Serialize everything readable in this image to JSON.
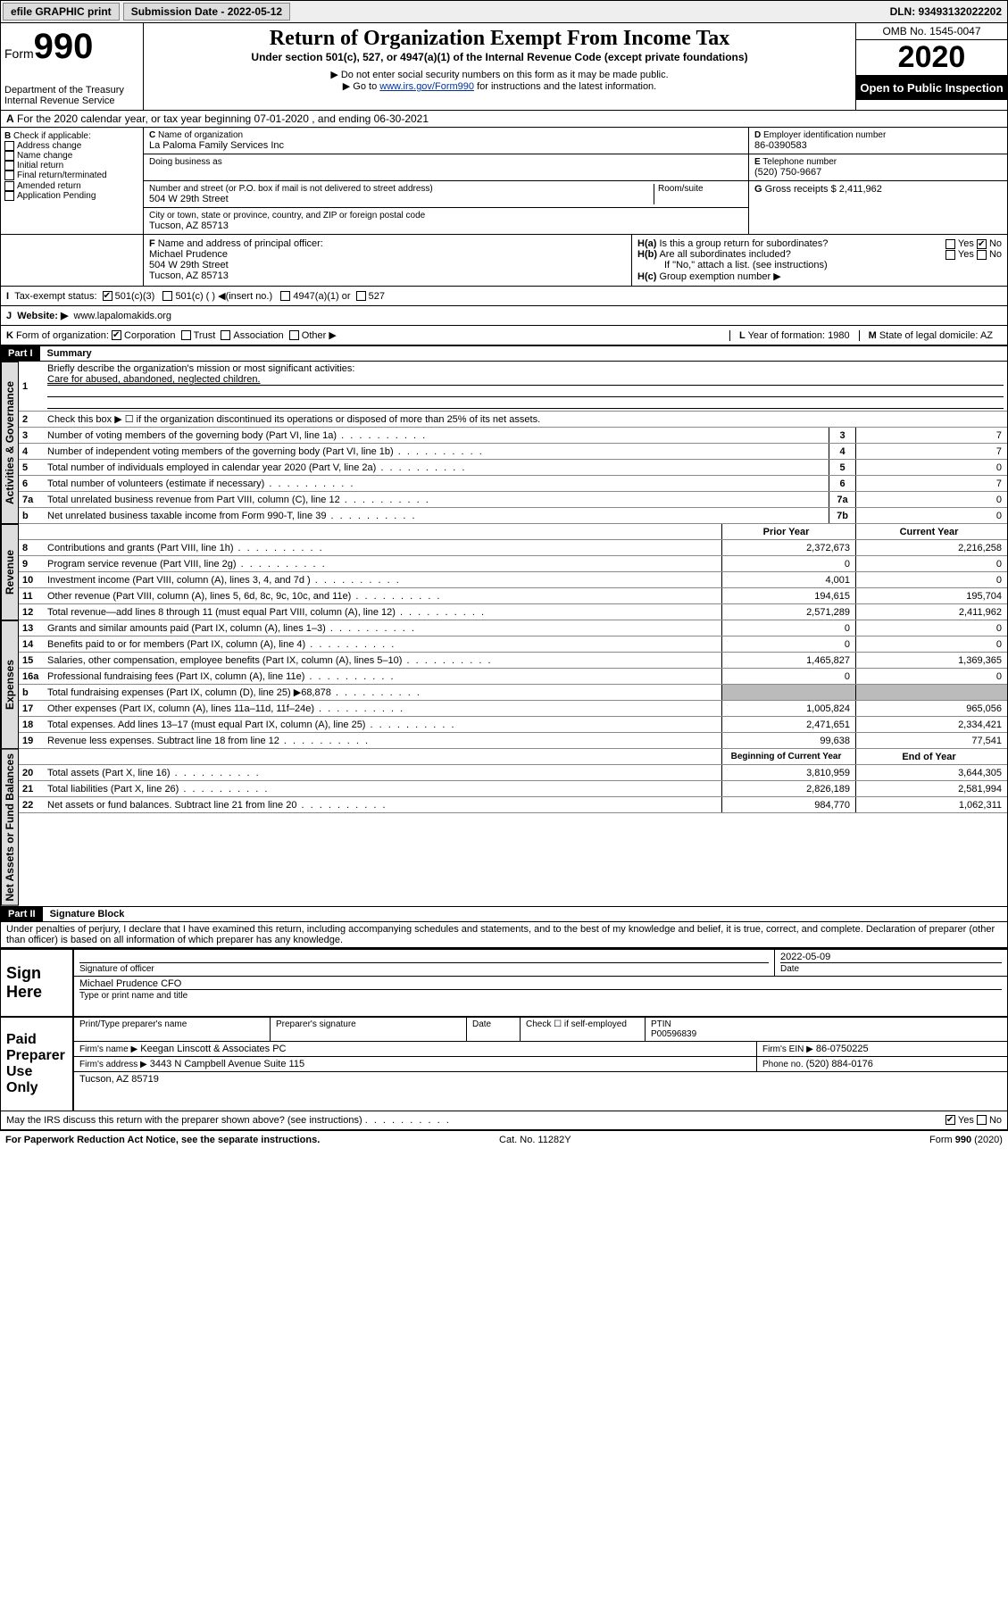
{
  "topbar": {
    "efile": "efile GRAPHIC print",
    "submission_label": "Submission Date - 2022-05-12",
    "dln": "DLN: 93493132022202"
  },
  "header": {
    "form_label": "Form",
    "form_number": "990",
    "dept": "Department of the Treasury\nInternal Revenue Service",
    "title": "Return of Organization Exempt From Income Tax",
    "subtitle": "Under section 501(c), 527, or 4947(a)(1) of the Internal Revenue Code (except private foundations)",
    "note1": "Do not enter social security numbers on this form as it may be made public.",
    "note2_pre": "Go to ",
    "note2_link": "www.irs.gov/Form990",
    "note2_post": " for instructions and the latest information.",
    "omb": "OMB No. 1545-0047",
    "year": "2020",
    "inspect": "Open to Public Inspection"
  },
  "rowA": "For the 2020 calendar year, or tax year beginning 07-01-2020    , and ending 06-30-2021",
  "boxB": {
    "label": "Check if applicable:",
    "items": [
      "Address change",
      "Name change",
      "Initial return",
      "Final return/terminated",
      "Amended return",
      "Application Pending"
    ]
  },
  "boxC": {
    "name_label": "Name of organization",
    "name": "La Paloma Family Services Inc",
    "dba_label": "Doing business as",
    "street_label": "Number and street (or P.O. box if mail is not delivered to street address)",
    "room_label": "Room/suite",
    "street": "504 W 29th Street",
    "city_label": "City or town, state or province, country, and ZIP or foreign postal code",
    "city": "Tucson, AZ  85713"
  },
  "boxD": {
    "label": "Employer identification number",
    "value": "86-0390583"
  },
  "boxE": {
    "label": "Telephone number",
    "value": "(520) 750-9667"
  },
  "boxG": {
    "label": "Gross receipts $",
    "value": "2,411,962"
  },
  "boxF": {
    "label": "Name and address of principal officer:",
    "name": "Michael Prudence",
    "street": "504 W 29th Street",
    "city": "Tucson, AZ  85713"
  },
  "boxH": {
    "a": "Is this a group return for subordinates?",
    "b": "Are all subordinates included?",
    "b_note": "If \"No,\" attach a list. (see instructions)",
    "c": "Group exemption number ▶"
  },
  "boxI": {
    "label": "Tax-exempt status:",
    "opts": [
      "501(c)(3)",
      "501(c) (  ) ◀(insert no.)",
      "4947(a)(1) or",
      "527"
    ]
  },
  "boxJ": {
    "label": "Website: ▶",
    "value": "www.lapalomakids.org"
  },
  "boxK": {
    "label": "Form of organization:",
    "opts": [
      "Corporation",
      "Trust",
      "Association",
      "Other ▶"
    ]
  },
  "boxL": {
    "label": "Year of formation:",
    "value": "1980"
  },
  "boxM": {
    "label": "State of legal domicile:",
    "value": "AZ"
  },
  "part1": {
    "header": "Part I",
    "title": "Summary",
    "tabs": {
      "ag": "Activities & Governance",
      "rev": "Revenue",
      "exp": "Expenses",
      "na": "Net Assets or Fund Balances"
    },
    "q1": "Briefly describe the organization's mission or most significant activities:",
    "q1a": "Care for abused, abandoned, neglected children.",
    "q2": "Check this box ▶ ☐  if the organization discontinued its operations or disposed of more than 25% of its net assets.",
    "lines_ag": [
      {
        "n": "3",
        "d": "Number of voting members of the governing body (Part VI, line 1a)",
        "b": "3",
        "v": "7"
      },
      {
        "n": "4",
        "d": "Number of independent voting members of the governing body (Part VI, line 1b)",
        "b": "4",
        "v": "7"
      },
      {
        "n": "5",
        "d": "Total number of individuals employed in calendar year 2020 (Part V, line 2a)",
        "b": "5",
        "v": "0"
      },
      {
        "n": "6",
        "d": "Total number of volunteers (estimate if necessary)",
        "b": "6",
        "v": "7"
      },
      {
        "n": "7a",
        "d": "Total unrelated business revenue from Part VIII, column (C), line 12",
        "b": "7a",
        "v": "0"
      },
      {
        "n": "b",
        "d": "Net unrelated business taxable income from Form 990-T, line 39",
        "b": "7b",
        "v": "0"
      }
    ],
    "col_py": "Prior Year",
    "col_cy": "Current Year",
    "lines_rev": [
      {
        "n": "8",
        "d": "Contributions and grants (Part VIII, line 1h)",
        "py": "2,372,673",
        "cy": "2,216,258"
      },
      {
        "n": "9",
        "d": "Program service revenue (Part VIII, line 2g)",
        "py": "0",
        "cy": "0"
      },
      {
        "n": "10",
        "d": "Investment income (Part VIII, column (A), lines 3, 4, and 7d )",
        "py": "4,001",
        "cy": "0"
      },
      {
        "n": "11",
        "d": "Other revenue (Part VIII, column (A), lines 5, 6d, 8c, 9c, 10c, and 11e)",
        "py": "194,615",
        "cy": "195,704"
      },
      {
        "n": "12",
        "d": "Total revenue—add lines 8 through 11 (must equal Part VIII, column (A), line 12)",
        "py": "2,571,289",
        "cy": "2,411,962"
      }
    ],
    "lines_exp": [
      {
        "n": "13",
        "d": "Grants and similar amounts paid (Part IX, column (A), lines 1–3)",
        "py": "0",
        "cy": "0"
      },
      {
        "n": "14",
        "d": "Benefits paid to or for members (Part IX, column (A), line 4)",
        "py": "0",
        "cy": "0"
      },
      {
        "n": "15",
        "d": "Salaries, other compensation, employee benefits (Part IX, column (A), lines 5–10)",
        "py": "1,465,827",
        "cy": "1,369,365"
      },
      {
        "n": "16a",
        "d": "Professional fundraising fees (Part IX, column (A), line 11e)",
        "py": "0",
        "cy": "0"
      },
      {
        "n": "b",
        "d": "Total fundraising expenses (Part IX, column (D), line 25) ▶68,878",
        "py": "shade",
        "cy": "shade"
      },
      {
        "n": "17",
        "d": "Other expenses (Part IX, column (A), lines 11a–11d, 11f–24e)",
        "py": "1,005,824",
        "cy": "965,056"
      },
      {
        "n": "18",
        "d": "Total expenses. Add lines 13–17 (must equal Part IX, column (A), line 25)",
        "py": "2,471,651",
        "cy": "2,334,421"
      },
      {
        "n": "19",
        "d": "Revenue less expenses. Subtract line 18 from line 12",
        "py": "99,638",
        "cy": "77,541"
      }
    ],
    "col_by": "Beginning of Current Year",
    "col_ey": "End of Year",
    "lines_na": [
      {
        "n": "20",
        "d": "Total assets (Part X, line 16)",
        "py": "3,810,959",
        "cy": "3,644,305"
      },
      {
        "n": "21",
        "d": "Total liabilities (Part X, line 26)",
        "py": "2,826,189",
        "cy": "2,581,994"
      },
      {
        "n": "22",
        "d": "Net assets or fund balances. Subtract line 21 from line 20",
        "py": "984,770",
        "cy": "1,062,311"
      }
    ]
  },
  "part2": {
    "header": "Part II",
    "title": "Signature Block",
    "perjury": "Under penalties of perjury, I declare that I have examined this return, including accompanying schedules and statements, and to the best of my knowledge and belief, it is true, correct, and complete. Declaration of preparer (other than officer) is based on all information of which preparer has any knowledge.",
    "sign_here": "Sign Here",
    "sig_officer": "Signature of officer",
    "sig_date": "2022-05-09",
    "sig_date_label": "Date",
    "officer_name": "Michael Prudence CFO",
    "officer_name_label": "Type or print name and title",
    "paid": "Paid Preparer Use Only",
    "prep_name_label": "Print/Type preparer's name",
    "prep_sig_label": "Preparer's signature",
    "date_label": "Date",
    "check_label": "Check ☐ if self-employed",
    "ptin_label": "PTIN",
    "ptin": "P00596839",
    "firm_name_label": "Firm's name    ▶",
    "firm_name": "Keegan Linscott & Associates PC",
    "firm_ein_label": "Firm's EIN ▶",
    "firm_ein": "86-0750225",
    "firm_addr_label": "Firm's address ▶",
    "firm_addr1": "3443 N Campbell Avenue Suite 115",
    "firm_addr2": "Tucson, AZ  85719",
    "phone_label": "Phone no.",
    "phone": "(520) 884-0176",
    "discuss": "May the IRS discuss this return with the preparer shown above? (see instructions)"
  },
  "footer": {
    "left": "For Paperwork Reduction Act Notice, see the separate instructions.",
    "mid": "Cat. No. 11282Y",
    "right": "Form 990 (2020)"
  }
}
